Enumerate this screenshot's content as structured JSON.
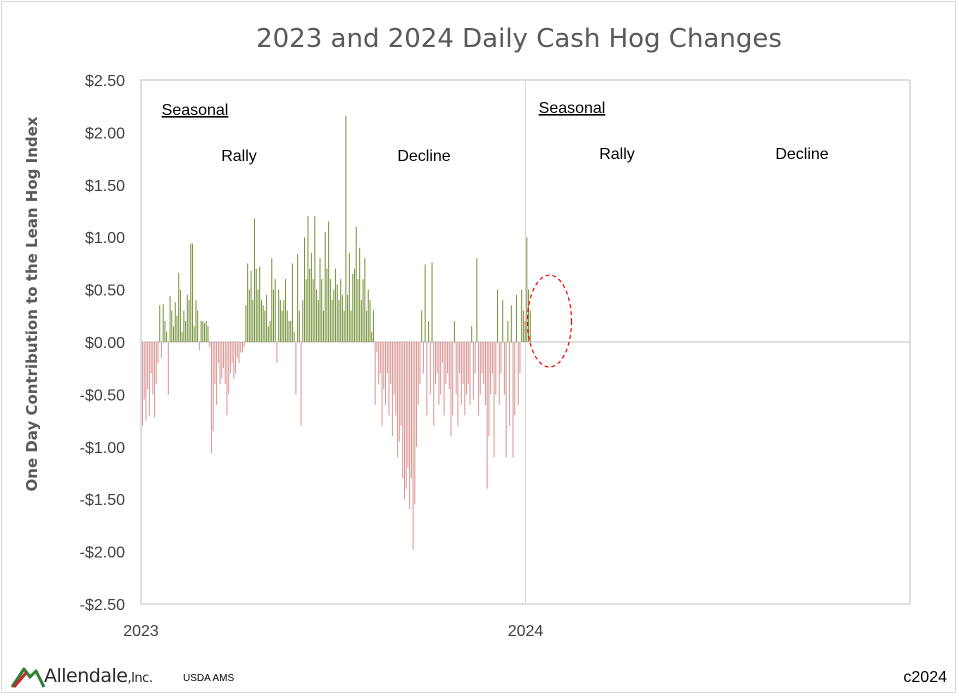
{
  "chart_data": {
    "type": "bar",
    "title": "2023 and 2024 Daily Cash Hog Changes",
    "ylabel": "One Day Contribution to the Lean Hog Index",
    "xlabel": "",
    "ylim": [
      -2.5,
      2.5
    ],
    "yticks": [
      "$2.50",
      "$2.00",
      "$1.50",
      "$1.00",
      "$0.50",
      "$0.00",
      "-$0.50",
      "-$1.00",
      "-$1.50",
      "-$2.00",
      "-$2.50"
    ],
    "ytick_values": [
      2.5,
      2.0,
      1.5,
      1.0,
      0.5,
      0.0,
      -0.5,
      -1.0,
      -1.5,
      -2.0,
      -2.5
    ],
    "xticks": [
      "2023",
      "2024"
    ],
    "xrange_years": [
      2023,
      2025
    ],
    "positive_color": "#77933c",
    "negative_color": "#d99694",
    "annotations": [
      {
        "text": "Seasonal",
        "underline": true,
        "period": "2023"
      },
      {
        "text": "Rally",
        "underline": false,
        "period": "2023"
      },
      {
        "text": "Decline",
        "underline": false,
        "period": "2023"
      },
      {
        "text": "Seasonal",
        "underline": true,
        "period": "2024"
      },
      {
        "text": "Rally",
        "underline": false,
        "period": "2024"
      },
      {
        "text": "Decline",
        "underline": false,
        "period": "2024"
      }
    ],
    "highlight": {
      "shape": "dashed-ellipse",
      "color": "#ff0000",
      "period": "early 2024"
    },
    "series": [
      {
        "values": [
          -0.8,
          -0.55,
          -0.75,
          -0.45,
          -0.7,
          -0.3,
          -0.5,
          -0.72,
          -0.4,
          -0.2,
          0.35,
          -0.15,
          0.36,
          0.2,
          0.1,
          -0.5,
          0.44,
          0.3,
          0.15,
          0.38,
          0.25,
          0.66,
          0.5,
          0.1,
          0.3,
          0.2,
          0.45,
          0.4,
          0.94,
          0.94,
          0.15,
          0.4,
          0.3,
          -0.08,
          0.2,
          0.2,
          0.18,
          0.2,
          0.15,
          -0.05,
          -1.06,
          -0.85,
          -0.4,
          -0.6,
          -0.2,
          -0.4,
          -0.35,
          -0.25,
          -0.4,
          -0.7,
          -0.5,
          -0.3,
          -0.2,
          -0.35,
          -0.3,
          -0.15,
          -0.2,
          -0.1,
          -0.1,
          -0.05,
          0.35,
          0.75,
          0.5,
          0.68,
          0.4,
          1.18,
          0.7,
          0.5,
          0.72,
          0.4,
          0.35,
          0.3,
          0.45,
          0.15,
          0.2,
          0.8,
          0.5,
          0.6,
          -0.2,
          0.5,
          0.4,
          0.3,
          0.4,
          0.6,
          0.3,
          0.2,
          0.2,
          0.75,
          0.1,
          -0.5,
          0.84,
          0.3,
          -0.8,
          0.4,
          1.0,
          0.6,
          1.2,
          0.7,
          0.85,
          0.6,
          1.2,
          0.5,
          0.4,
          0.8,
          0.6,
          0.3,
          1.05,
          0.7,
          1.15,
          0.6,
          0.4,
          0.5,
          0.7,
          0.55,
          0.4,
          0.6,
          0.45,
          0.3,
          2.16,
          0.45,
          0.85,
          0.3,
          0.65,
          0.7,
          1.1,
          0.6,
          0.9,
          0.4,
          0.6,
          0.8,
          0.3,
          0.5,
          0.4,
          0.1,
          0.3,
          -0.6,
          -0.1,
          -0.4,
          -0.3,
          -0.8,
          -0.45,
          -0.6,
          -0.3,
          -0.7,
          -0.4,
          -0.9,
          -0.5,
          -0.7,
          -1.1,
          -0.95,
          -0.8,
          -1.3,
          -1.5,
          -1.4,
          -1.2,
          -1.6,
          -1.3,
          -1.98,
          -1.55,
          -1.0,
          -0.6,
          -0.4,
          0.3,
          -0.3,
          0.74,
          -0.7,
          0.2,
          -0.5,
          0.76,
          -0.8,
          -0.4,
          -0.3,
          -0.6,
          -0.5,
          -0.2,
          -0.7,
          -0.4,
          -0.3,
          -0.45,
          -0.9,
          -0.7,
          0.2,
          -0.5,
          -0.8,
          -0.3,
          -0.6,
          -0.4,
          -0.7,
          -0.5,
          -0.4,
          -0.6,
          0.15,
          -0.55,
          -0.3,
          0.8,
          -0.7,
          -0.5,
          -0.3,
          -0.4,
          -0.6,
          -1.4,
          -0.9,
          -0.5,
          -0.3,
          -1.1,
          -0.5,
          0.5,
          -0.6,
          -0.3,
          0.4,
          -0.5,
          -1.1,
          0.2,
          -0.8,
          0.35,
          -1.1,
          -0.7,
          0.45,
          -0.6,
          -0.3,
          0.5,
          0.3,
          0.2,
          1.0,
          0.5,
          0.3
        ]
      }
    ]
  },
  "footer": {
    "logo_name": "Allendale",
    "logo_suffix": ",Inc.",
    "source": "USDA AMS",
    "copyright": "c2024"
  }
}
